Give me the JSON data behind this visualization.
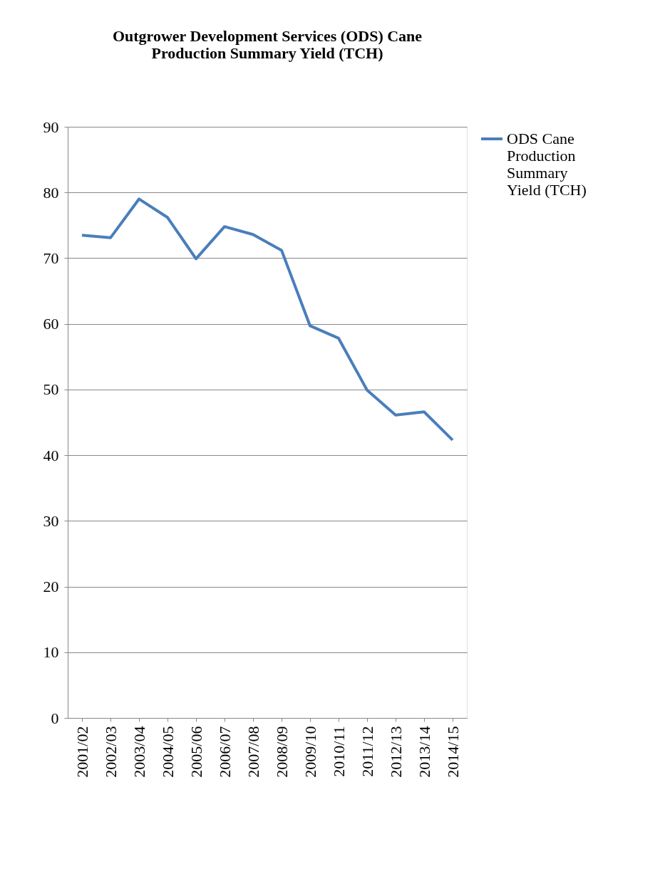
{
  "chart_data": {
    "type": "line",
    "title": [
      "Outgrower Development Services (ODS) Cane",
      "Production Summary Yield (TCH)"
    ],
    "categories": [
      "2001/02",
      "2002/03",
      "2003/04",
      "2004/05",
      "2005/06",
      "2006/07",
      "2007/08",
      "2008/09",
      "2009/10",
      "2010/11",
      "2011/12",
      "2012/13",
      "2013/14",
      "2014/15"
    ],
    "series": [
      {
        "name": "ODS Cane Production Summary Yield (TCH)",
        "color": "#4a7ebb",
        "values": [
          73.5,
          73.1,
          79.0,
          76.2,
          69.9,
          74.8,
          73.6,
          71.2,
          59.7,
          57.8,
          49.9,
          46.1,
          46.6,
          42.3
        ]
      }
    ],
    "ylim": [
      0,
      90
    ],
    "yticks": [
      0,
      10,
      20,
      30,
      40,
      50,
      60,
      70,
      80,
      90
    ],
    "grid": "y",
    "legend": "right",
    "marker": "none",
    "line_style": "solid"
  }
}
